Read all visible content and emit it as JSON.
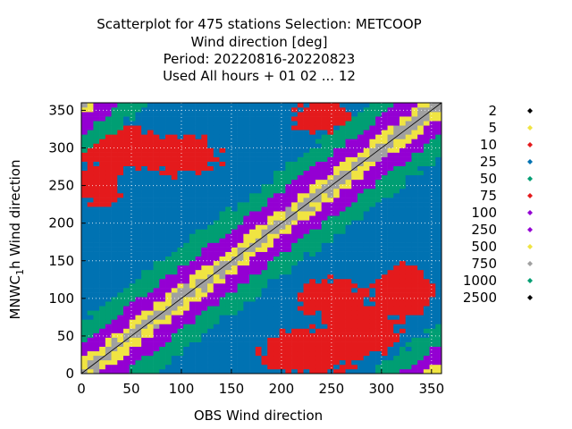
{
  "chart_data": {
    "type": "scatter",
    "title_lines": [
      "Scatterplot for  475 stations Selection: METCOOP",
      "Wind direction [deg]",
      "Period: 20220816-20220823",
      "Used  All hours + 01 02 ... 12"
    ],
    "xlabel": "OBS Wind direction",
    "ylabel_main": "MNWC",
    "ylabel_sub": "1",
    "ylabel_rest": "h Wind direction",
    "xlim": [
      0,
      360
    ],
    "ylim": [
      0,
      360
    ],
    "xticks": [
      0,
      50,
      100,
      150,
      200,
      250,
      300,
      350
    ],
    "yticks": [
      0,
      50,
      100,
      150,
      200,
      250,
      300,
      350
    ],
    "grid": true,
    "legend_placement": "right",
    "legend": [
      {
        "label": "2",
        "color": "#000000"
      },
      {
        "label": "5",
        "color": "#f0e442"
      },
      {
        "label": "10",
        "color": "#e41a1c"
      },
      {
        "label": "25",
        "color": "#0072b2"
      },
      {
        "label": "50",
        "color": "#009e73"
      },
      {
        "label": "75",
        "color": "#e41a1c"
      },
      {
        "label": "100",
        "color": "#9400d3"
      },
      {
        "label": "250",
        "color": "#9400d3"
      },
      {
        "label": "500",
        "color": "#f0e442"
      },
      {
        "label": "750",
        "color": "#a0a0a0"
      },
      {
        "label": "1000",
        "color": "#009e73"
      },
      {
        "label": "2500",
        "color": "#000000"
      }
    ],
    "diagonal_band_bins": [
      {
        "max_distance": 8,
        "color": "#a0a0a0"
      },
      {
        "max_distance": 18,
        "color": "#f0e442"
      },
      {
        "max_distance": 42,
        "color": "#9400d3"
      },
      {
        "max_distance": 70,
        "color": "#009e73"
      }
    ],
    "background_color": "#0072b2",
    "cluster_color": "#e41a1c",
    "density_clusters": [
      {
        "x": 40,
        "y": 300,
        "rx": 45,
        "ry": 30
      },
      {
        "x": 100,
        "y": 290,
        "rx": 40,
        "ry": 25
      },
      {
        "x": 20,
        "y": 250,
        "rx": 20,
        "ry": 30
      },
      {
        "x": 240,
        "y": 340,
        "rx": 30,
        "ry": 20
      },
      {
        "x": 280,
        "y": 60,
        "rx": 40,
        "ry": 35
      },
      {
        "x": 230,
        "y": 30,
        "rx": 50,
        "ry": 30
      },
      {
        "x": 320,
        "y": 110,
        "rx": 30,
        "ry": 35
      },
      {
        "x": 250,
        "y": 100,
        "rx": 35,
        "ry": 25
      }
    ]
  }
}
